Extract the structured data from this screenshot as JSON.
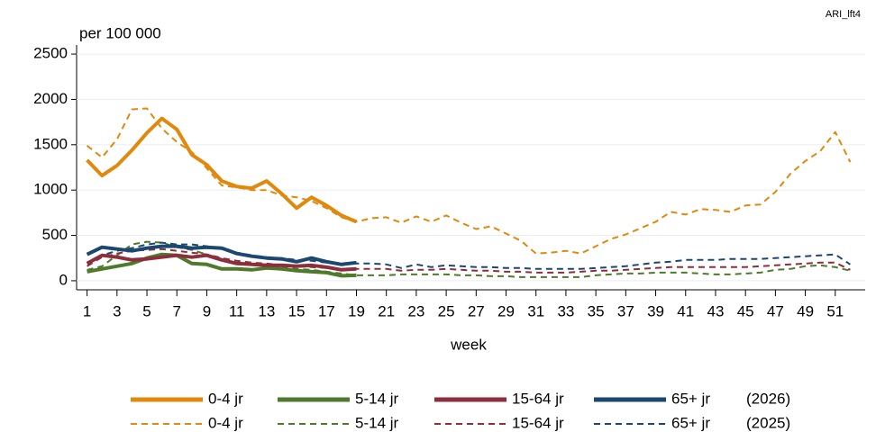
{
  "chart_data": {
    "type": "line",
    "corner_note": "ARI_lft4",
    "y_label": "per 100 000",
    "x_label": "week",
    "x": [
      1,
      2,
      3,
      4,
      5,
      6,
      7,
      8,
      9,
      10,
      11,
      12,
      13,
      14,
      15,
      16,
      17,
      18,
      19,
      20,
      21,
      22,
      23,
      24,
      25,
      26,
      27,
      28,
      29,
      30,
      31,
      32,
      33,
      34,
      35,
      36,
      37,
      38,
      39,
      40,
      41,
      42,
      43,
      44,
      45,
      46,
      47,
      48,
      49,
      50,
      51,
      52
    ],
    "xlim": [
      0.3,
      53
    ],
    "xticks": [
      1,
      3,
      5,
      7,
      9,
      11,
      13,
      15,
      17,
      19,
      21,
      23,
      25,
      27,
      29,
      31,
      33,
      35,
      37,
      39,
      41,
      43,
      45,
      47,
      49,
      51
    ],
    "ylim": [
      -100,
      2600
    ],
    "yticks": [
      0,
      500,
      1000,
      1500,
      2000,
      2500
    ],
    "grid": true,
    "legend_years": [
      "(2026)",
      "(2025)"
    ],
    "series": [
      {
        "name": "0-4 jr",
        "color": "#e0890d",
        "dash": false,
        "values": [
          1330,
          1160,
          1270,
          1440,
          1630,
          1790,
          1670,
          1390,
          1280,
          1100,
          1040,
          1020,
          1100,
          960,
          800,
          920,
          830,
          720,
          650,
          null,
          null,
          null,
          null,
          null,
          null,
          null,
          null,
          null,
          null,
          null,
          null,
          null,
          null,
          null,
          null,
          null,
          null,
          null,
          null,
          null,
          null,
          null,
          null,
          null,
          null,
          null,
          null,
          null,
          null,
          null,
          null,
          null
        ]
      },
      {
        "name": "5-14 jr",
        "color": "#4f7a2b",
        "dash": false,
        "values": [
          100,
          130,
          160,
          190,
          250,
          290,
          280,
          190,
          180,
          130,
          130,
          120,
          140,
          130,
          110,
          100,
          90,
          55,
          60,
          null,
          null,
          null,
          null,
          null,
          null,
          null,
          null,
          null,
          null,
          null,
          null,
          null,
          null,
          null,
          null,
          null,
          null,
          null,
          null,
          null,
          null,
          null,
          null,
          null,
          null,
          null,
          null,
          null,
          null,
          null,
          null,
          null
        ]
      },
      {
        "name": "15-64 jr",
        "color": "#8e2e3c",
        "dash": false,
        "values": [
          190,
          280,
          260,
          230,
          240,
          260,
          280,
          260,
          280,
          230,
          190,
          180,
          170,
          170,
          160,
          170,
          150,
          120,
          130,
          null,
          null,
          null,
          null,
          null,
          null,
          null,
          null,
          null,
          null,
          null,
          null,
          null,
          null,
          null,
          null,
          null,
          null,
          null,
          null,
          null,
          null,
          null,
          null,
          null,
          null,
          null,
          null,
          null,
          null,
          null,
          null,
          null
        ]
      },
      {
        "name": "65+ jr",
        "color": "#1a4871",
        "dash": false,
        "values": [
          290,
          370,
          350,
          330,
          360,
          380,
          380,
          360,
          370,
          360,
          300,
          270,
          250,
          240,
          210,
          250,
          210,
          180,
          200,
          null,
          null,
          null,
          null,
          null,
          null,
          null,
          null,
          null,
          null,
          null,
          null,
          null,
          null,
          null,
          null,
          null,
          null,
          null,
          null,
          null,
          null,
          null,
          null,
          null,
          null,
          null,
          null,
          null,
          null,
          null,
          null,
          null
        ]
      },
      {
        "name": "0-4 jr",
        "color": "#e0890d",
        "dash": true,
        "values": [
          1490,
          1360,
          1560,
          1890,
          1900,
          1680,
          1530,
          1420,
          1240,
          1050,
          1030,
          1000,
          1000,
          940,
          920,
          880,
          800,
          700,
          650,
          690,
          700,
          640,
          710,
          650,
          720,
          640,
          570,
          600,
          520,
          440,
          300,
          310,
          330,
          300,
          380,
          460,
          510,
          580,
          650,
          760,
          730,
          790,
          780,
          760,
          830,
          840,
          980,
          1180,
          1320,
          1430,
          1640,
          1310
        ]
      },
      {
        "name": "5-14 jr",
        "color": "#4f7a2b",
        "dash": true,
        "values": [
          120,
          160,
          280,
          400,
          430,
          420,
          370,
          340,
          290,
          230,
          200,
          180,
          170,
          150,
          130,
          120,
          100,
          80,
          60,
          60,
          60,
          70,
          70,
          70,
          70,
          60,
          60,
          50,
          50,
          40,
          40,
          40,
          40,
          40,
          60,
          70,
          80,
          80,
          90,
          90,
          90,
          80,
          70,
          70,
          80,
          90,
          120,
          130,
          160,
          170,
          150,
          110
        ]
      },
      {
        "name": "15-64 jr",
        "color": "#8e2e3c",
        "dash": true,
        "values": [
          160,
          260,
          300,
          330,
          340,
          350,
          330,
          310,
          290,
          250,
          220,
          200,
          190,
          170,
          160,
          150,
          140,
          130,
          130,
          130,
          130,
          110,
          120,
          120,
          130,
          120,
          110,
          110,
          100,
          100,
          90,
          90,
          90,
          100,
          110,
          110,
          120,
          130,
          140,
          150,
          150,
          150,
          150,
          150,
          150,
          160,
          170,
          180,
          190,
          200,
          200,
          120
        ]
      },
      {
        "name": "65+ jr",
        "color": "#1a4871",
        "dash": true,
        "values": [
          200,
          280,
          330,
          360,
          400,
          420,
          400,
          400,
          380,
          350,
          310,
          280,
          260,
          250,
          230,
          220,
          200,
          190,
          190,
          190,
          180,
          140,
          180,
          150,
          170,
          160,
          150,
          150,
          140,
          140,
          130,
          130,
          130,
          130,
          140,
          150,
          160,
          180,
          200,
          210,
          230,
          230,
          230,
          240,
          240,
          240,
          250,
          260,
          270,
          280,
          290,
          180
        ]
      }
    ]
  }
}
